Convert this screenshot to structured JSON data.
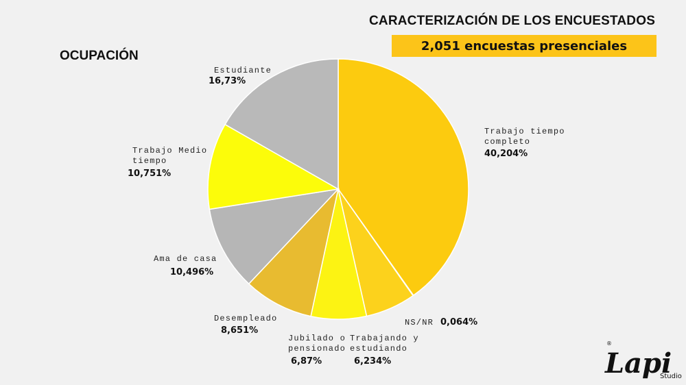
{
  "header": {
    "title": "CARACTERIZACIÓN DE LOS ENCUESTADOS",
    "subtitle": "2,051 encuestas presenciales"
  },
  "section": {
    "label": "OCUPACIÓN"
  },
  "chart_data": {
    "type": "pie",
    "start_angle_deg": 0,
    "direction": "clockwise",
    "slices": [
      {
        "name": [
          "Trabajo tiempo",
          "completo"
        ],
        "value": 40.204,
        "label": "40,204%",
        "color": "#fccb0f"
      },
      {
        "name": [
          "NS/NR"
        ],
        "value": 0.064,
        "label": "0,064%",
        "color": "#6f6f6f"
      },
      {
        "name": [
          "Trabajando y",
          "estudiando"
        ],
        "value": 6.234,
        "label": "6,234%",
        "color": "#fcd21c"
      },
      {
        "name": [
          "Jubilado o",
          "pensionado"
        ],
        "value": 6.87,
        "label": "6,87%",
        "color": "#fcf313"
      },
      {
        "name": [
          "Desempleado"
        ],
        "value": 8.651,
        "label": "8,651%",
        "color": "#e8bb30"
      },
      {
        "name": [
          "Ama de casa"
        ],
        "value": 10.496,
        "label": "10,496%",
        "color": "#b6b6b6"
      },
      {
        "name": [
          "Trabajo Medio",
          "tiempo"
        ],
        "value": 10.751,
        "label": "10,751%",
        "color": "#fcfc0a"
      },
      {
        "name": [
          "Estudiante"
        ],
        "value": 16.73,
        "label": "16,73%",
        "color": "#b9b9b9"
      }
    ]
  },
  "brand": {
    "logo_text": "Lapi",
    "logo_suffix": "Studio",
    "registered_mark": "®"
  }
}
